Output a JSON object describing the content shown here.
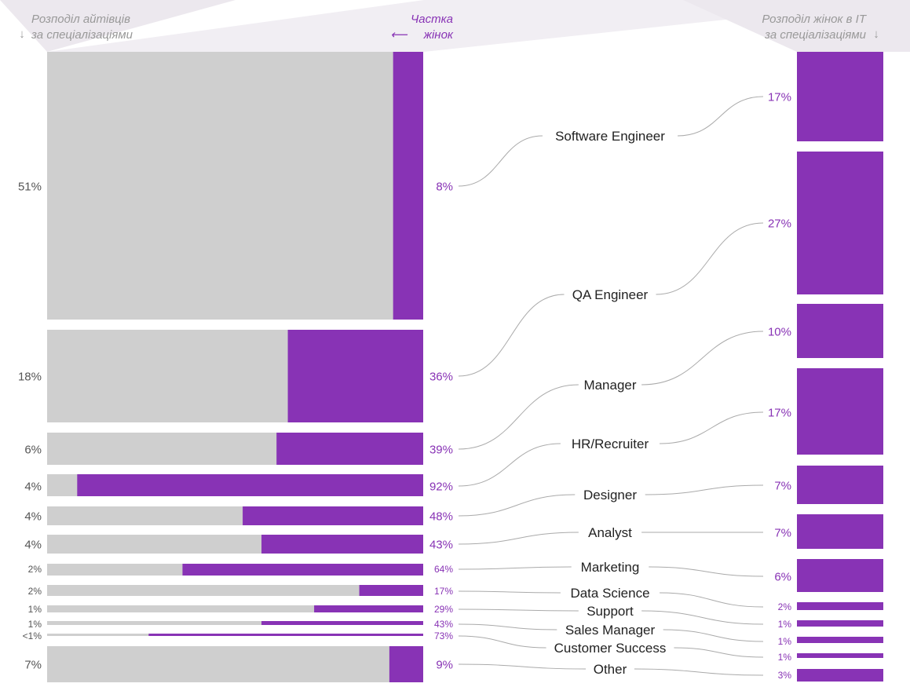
{
  "chart_data": {
    "type": "bar",
    "left_header": [
      "Розподіл айтівців",
      "за спеціалізаціями"
    ],
    "middle_header": [
      "Частка",
      "жінок"
    ],
    "right_header": [
      "Розподіл жінок в IT",
      "за спеціалізаціями"
    ],
    "left_arrow": "↓",
    "middle_arrow": "⟵",
    "right_arrow": "↓",
    "colors": {
      "men": "#cfcfcf",
      "women": "#8833b5",
      "text": "#555555",
      "accent_text": "#8833b5",
      "header": "#999999",
      "connector": "#aaaaaa"
    },
    "rows": [
      {
        "category": "Software Engineer",
        "share_of_it": "51%",
        "women_share": "8%",
        "women_share_value": 8,
        "women_distribution": "17%"
      },
      {
        "category": "QA Engineer",
        "share_of_it": "18%",
        "women_share": "36%",
        "women_share_value": 36,
        "women_distribution": "27%"
      },
      {
        "category": "Manager",
        "share_of_it": "6%",
        "women_share": "39%",
        "women_share_value": 39,
        "women_distribution": "10%"
      },
      {
        "category": "HR/Recruiter",
        "share_of_it": "4%",
        "women_share": "92%",
        "women_share_value": 92,
        "women_distribution": "17%"
      },
      {
        "category": "Designer",
        "share_of_it": "4%",
        "women_share": "48%",
        "women_share_value": 48,
        "women_distribution": "7%"
      },
      {
        "category": "Analyst",
        "share_of_it": "4%",
        "women_share": "43%",
        "women_share_value": 43,
        "women_distribution": "7%"
      },
      {
        "category": "Marketing",
        "share_of_it": "2%",
        "women_share": "64%",
        "women_share_value": 64,
        "women_distribution": "6%"
      },
      {
        "category": "Data Science",
        "share_of_it": "2%",
        "women_share": "17%",
        "women_share_value": 17,
        "women_distribution": "2%"
      },
      {
        "category": "Support",
        "share_of_it": "1%",
        "women_share": "29%",
        "women_share_value": 29,
        "women_distribution": "1%"
      },
      {
        "category": "Sales Manager",
        "share_of_it": "1%",
        "women_share": "43%",
        "women_share_value": 43,
        "women_distribution": "1%"
      },
      {
        "category": "Customer Success",
        "share_of_it": "<1%",
        "women_share": "73%",
        "women_share_value": 73,
        "women_distribution": "1%"
      },
      {
        "category": "Other",
        "share_of_it": "7%",
        "women_share": "9%",
        "women_share_value": 9,
        "women_distribution": "3%"
      }
    ]
  }
}
